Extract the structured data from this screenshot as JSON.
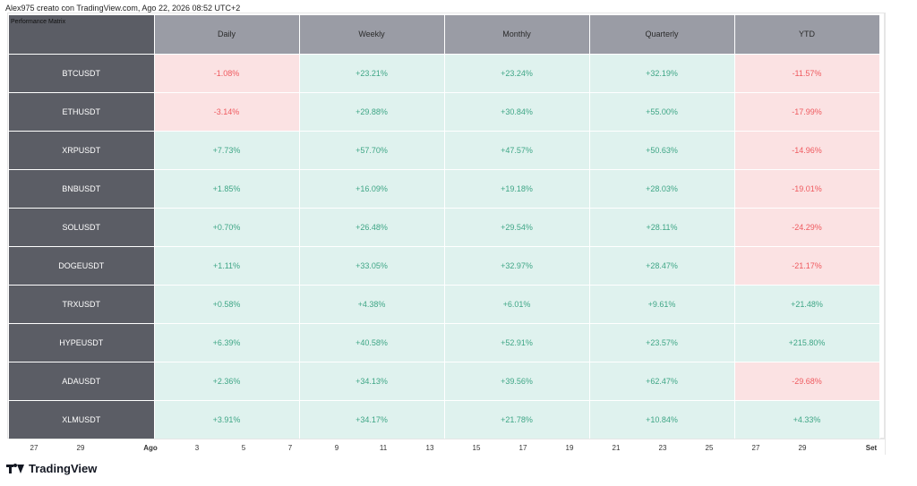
{
  "caption": "Alex975 creato con TradingView.com, Ago 22, 2026 08:52 UTC+2",
  "matrix": {
    "title": "Performance Matrix",
    "columns": [
      "Daily",
      "Weekly",
      "Monthly",
      "Quarterly",
      "YTD"
    ],
    "rows": [
      {
        "symbol": "BTCUSDT",
        "values": [
          "-1.08%",
          "+23.21%",
          "+23.24%",
          "+32.19%",
          "-11.57%"
        ]
      },
      {
        "symbol": "ETHUSDT",
        "values": [
          "-3.14%",
          "+29.88%",
          "+30.84%",
          "+55.00%",
          "-17.99%"
        ]
      },
      {
        "symbol": "XRPUSDT",
        "values": [
          "+7.73%",
          "+57.70%",
          "+47.57%",
          "+50.63%",
          "-14.96%"
        ]
      },
      {
        "symbol": "BNBUSDT",
        "values": [
          "+1.85%",
          "+16.09%",
          "+19.18%",
          "+28.03%",
          "-19.01%"
        ]
      },
      {
        "symbol": "SOLUSDT",
        "values": [
          "+0.70%",
          "+26.48%",
          "+29.54%",
          "+28.11%",
          "-24.29%"
        ]
      },
      {
        "symbol": "DOGEUSDT",
        "values": [
          "+1.11%",
          "+33.05%",
          "+32.97%",
          "+28.47%",
          "-21.17%"
        ]
      },
      {
        "symbol": "TRXUSDT",
        "values": [
          "+0.58%",
          "+4.38%",
          "+6.01%",
          "+9.61%",
          "+21.48%"
        ]
      },
      {
        "symbol": "HYPEUSDT",
        "values": [
          "+6.39%",
          "+40.58%",
          "+52.91%",
          "+23.57%",
          "+215.80%"
        ]
      },
      {
        "symbol": "ADAUSDT",
        "values": [
          "+2.36%",
          "+34.13%",
          "+39.56%",
          "+62.47%",
          "-29.68%"
        ]
      },
      {
        "symbol": "XLMUSDT",
        "values": [
          "+3.91%",
          "+34.17%",
          "+21.78%",
          "+10.84%",
          "+4.33%"
        ]
      }
    ]
  },
  "time_axis": {
    "ticks": [
      {
        "label": "27",
        "bold": false
      },
      {
        "label": "29",
        "bold": false
      },
      {
        "label": "Ago",
        "bold": true
      },
      {
        "label": "3",
        "bold": false
      },
      {
        "label": "5",
        "bold": false
      },
      {
        "label": "7",
        "bold": false
      },
      {
        "label": "9",
        "bold": false
      },
      {
        "label": "11",
        "bold": false
      },
      {
        "label": "13",
        "bold": false
      },
      {
        "label": "15",
        "bold": false
      },
      {
        "label": "17",
        "bold": false
      },
      {
        "label": "19",
        "bold": false
      },
      {
        "label": "21",
        "bold": false
      },
      {
        "label": "23",
        "bold": false
      },
      {
        "label": "25",
        "bold": false
      },
      {
        "label": "27",
        "bold": false
      },
      {
        "label": "29",
        "bold": false
      },
      {
        "label": "Set",
        "bold": true
      }
    ]
  },
  "brand": {
    "name": "TradingView",
    "icon": "tradingview-logo-icon"
  },
  "colors": {
    "positive_bg": "#dff2ee",
    "positive_text": "#3fa686",
    "negative_bg": "#fbe2e3",
    "negative_text": "#ef5a5f",
    "label_bg": "#5b5d65",
    "header_bg": "#9a9ca5"
  }
}
